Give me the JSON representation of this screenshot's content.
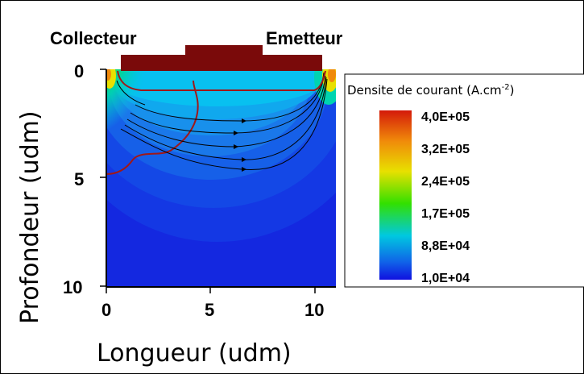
{
  "chart_data": {
    "type": "heatmap",
    "title": "",
    "xlabel": "Longueur (udm)",
    "ylabel": "Profondeur (udm)",
    "xlim": [
      0,
      11
    ],
    "ylim": [
      10,
      0
    ],
    "x_ticks": [
      "0",
      "5",
      "10"
    ],
    "y_ticks": [
      "0",
      "5",
      "10"
    ],
    "annotations": {
      "collector": "Collecteur",
      "emitter": "Emetteur"
    },
    "colorbar": {
      "title": "Densite de courant (A.cm",
      "title_sup": "-2",
      "title_end": ")",
      "labels": [
        "4,0E+05",
        "3,2E+05",
        "2,4E+05",
        "1,7E+05",
        "8,8E+04",
        "1,0E+04"
      ],
      "colors": [
        "#d41a0a",
        "#f08a0a",
        "#e8e000",
        "#32e000",
        "#00c8e0",
        "#1060e8",
        "#1010e0"
      ]
    },
    "grid": false
  }
}
